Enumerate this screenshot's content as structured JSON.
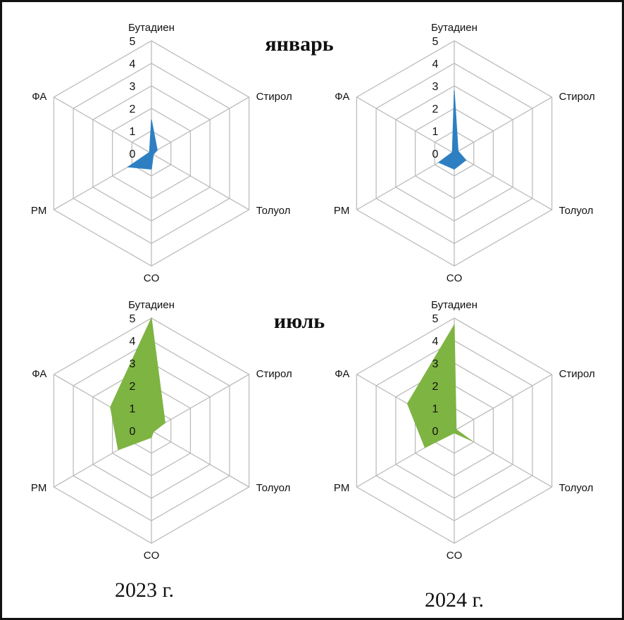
{
  "labels": {
    "january": "январь",
    "july": "июль",
    "year_2023": "2023 г.",
    "year_2024": "2024 г."
  },
  "chart_data": [
    {
      "type": "radar",
      "period": "январь 2023 г.",
      "axes": [
        "Бутадиен",
        "Стирол",
        "Толуол",
        "CO",
        "PM",
        "ФА"
      ],
      "ticks": [
        "0",
        "1",
        "2",
        "3",
        "4",
        "5"
      ],
      "rlim": [
        0,
        5
      ],
      "values": [
        1.5,
        0.3,
        0.1,
        0.7,
        1.2,
        0.1
      ],
      "color": "#2E7FC2"
    },
    {
      "type": "radar",
      "period": "январь 2024 г.",
      "axes": [
        "Бутадиен",
        "Стирол",
        "Толуол",
        "CO",
        "PM",
        "ФА"
      ],
      "ticks": [
        "0",
        "1",
        "2",
        "3",
        "4",
        "5"
      ],
      "rlim": [
        0,
        5
      ],
      "values": [
        2.8,
        0.2,
        0.6,
        0.7,
        0.8,
        0.1
      ],
      "color": "#2E7FC2"
    },
    {
      "type": "radar",
      "period": "июль 2023 г.",
      "axes": [
        "Бутадиен",
        "Стирол",
        "Толуол",
        "CO",
        "PM",
        "ФА"
      ],
      "ticks": [
        "0",
        "1",
        "2",
        "3",
        "4",
        "5"
      ],
      "rlim": [
        0,
        5
      ],
      "values": [
        5.0,
        0.7,
        0.1,
        0.3,
        1.7,
        2.1
      ],
      "color": "#7EB442"
    },
    {
      "type": "radar",
      "period": "июль 2024 г.",
      "axes": [
        "Бутадиен",
        "Стирол",
        "Толуол",
        "CO",
        "PM",
        "ФА"
      ],
      "ticks": [
        "0",
        "1",
        "2",
        "3",
        "4",
        "5"
      ],
      "rlim": [
        0,
        5
      ],
      "values": [
        4.7,
        0.1,
        0.9,
        0.1,
        1.5,
        2.4
      ],
      "color": "#7EB442"
    }
  ]
}
